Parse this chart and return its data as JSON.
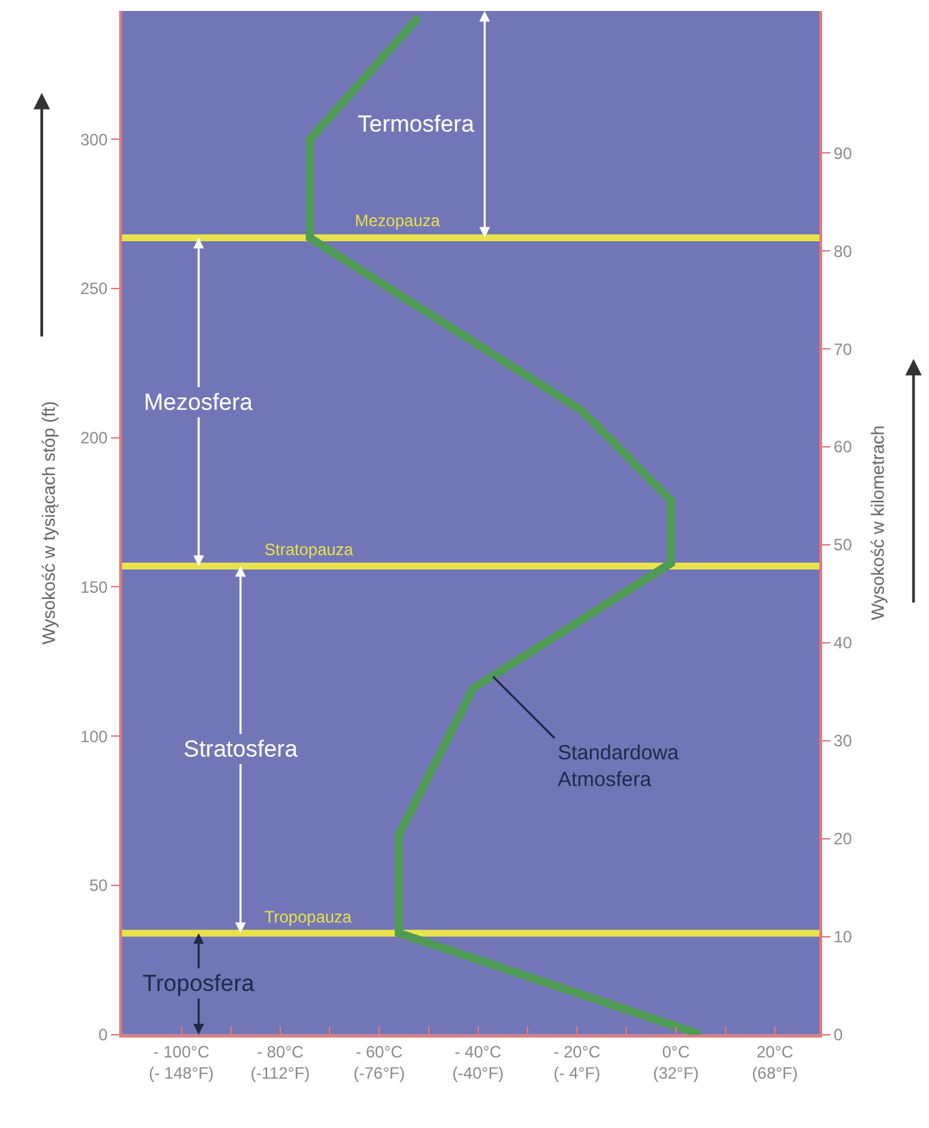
{
  "chart_data": {
    "type": "line",
    "ylabel": "Wysokość w tysiącach stóp (ft)",
    "y2label": "Wysokość w kilometrach",
    "series": [
      {
        "color": "#4f9a55",
        "x": [
          5,
          -56,
          -56,
          -41,
          -1,
          -1,
          -19,
          -74,
          -74,
          -52
        ],
        "values": [
          0,
          34,
          67,
          116,
          158,
          179,
          209,
          267,
          300,
          341
        ]
      }
    ],
    "xlim": [
      -112,
      29
    ],
    "xticks": [
      {
        "value": -100,
        "label": "- 100°C"
      },
      {
        "value": -90,
        "label": null
      },
      {
        "value": -80,
        "label": "- 80°C"
      },
      {
        "value": -70,
        "label": null
      },
      {
        "value": -60,
        "label": "- 60°C"
      },
      {
        "value": -50,
        "label": null
      },
      {
        "value": -40,
        "label": "- 40°C"
      },
      {
        "value": -30,
        "label": null
      },
      {
        "value": -20,
        "label": "- 20°C"
      },
      {
        "value": -10,
        "label": null
      },
      {
        "value": 0,
        "label": "0°C"
      },
      {
        "value": 10,
        "label": null
      },
      {
        "value": 20,
        "label": "20°C"
      }
    ],
    "x2lim": [
      -169.6,
      84.2
    ],
    "x2ticks": [
      {
        "value": -148,
        "label": "(- 148°F)"
      },
      {
        "value": -112,
        "label": "(-112°F)"
      },
      {
        "value": -76,
        "label": "(-76°F)"
      },
      {
        "value": -40,
        "label": "(-40°F)"
      },
      {
        "value": -4,
        "label": "(- 4°F)"
      },
      {
        "value": 32,
        "label": "(32°F)"
      },
      {
        "value": 68,
        "label": "(68°F)"
      }
    ],
    "ylim": [
      0,
      343
    ],
    "yticks": [
      0,
      50,
      100,
      150,
      200,
      250,
      300
    ],
    "y2lim": [
      0,
      104.5
    ],
    "y2ticks": [
      0,
      10,
      20,
      30,
      40,
      50,
      60,
      70,
      80,
      90
    ],
    "ref_lines": [
      {
        "axis": "y",
        "value": 34,
        "label": "Tropopauza",
        "color": "#e8e24c"
      },
      {
        "axis": "y",
        "value": 157,
        "label": "Stratopauza",
        "color": "#e8e24c"
      },
      {
        "axis": "y",
        "value": 267,
        "label": "Mezopauza",
        "color": "#e8e24c"
      }
    ],
    "annotations": [
      "Troposfera",
      "Stratosfera",
      "Mezosfera",
      "Termosfera",
      {
        "text": "Standardowa\nAtmosfera",
        "x": -37,
        "y": 120
      }
    ],
    "grid": false,
    "marker": "none",
    "line_style": "solid"
  }
}
